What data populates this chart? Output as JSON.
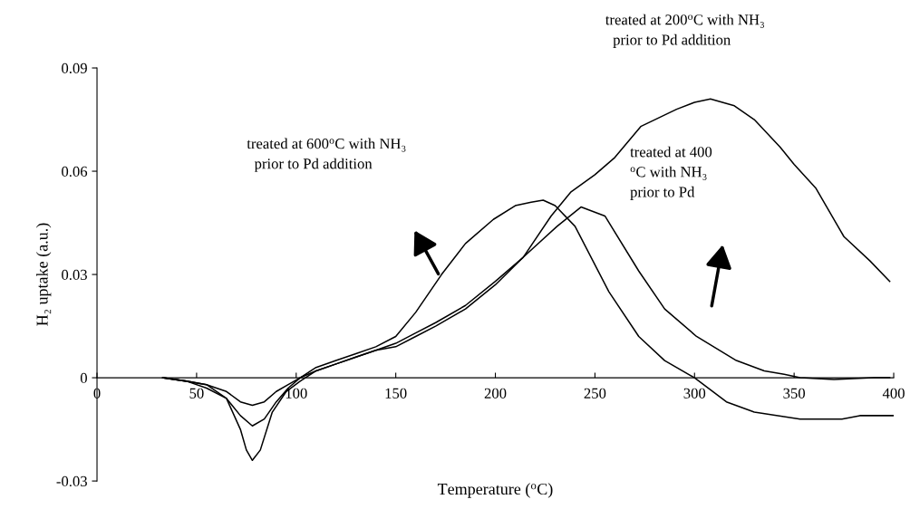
{
  "chart_data": {
    "type": "line",
    "xlabel": "Temperature ($^{o}$C)",
    "ylabel": "H₂ uptake (a.u.)",
    "xlim": [
      0,
      400
    ],
    "xticks": [
      0,
      50,
      100,
      150,
      200,
      250,
      300,
      350,
      400
    ],
    "ylim": [
      -0.03,
      0.09
    ],
    "yticks": [
      {
        "value": -0.03,
        "label": "-0.03"
      },
      0,
      0.03,
      0.06,
      0.09
    ],
    "grid": false,
    "marker": "none",
    "line_style": "solid",
    "annotations": [
      "treated at 200$^{o}$C with NH₃\n  prior to Pd addition",
      "treated at 600$^{o}$C with NH₃\n  prior to Pd addition",
      "treated at 400\n$^{o}$C with NH₃\nprior to Pd"
    ],
    "series": [
      {
        "color": "#000000",
        "x": [
          33,
          45,
          55,
          65,
          72,
          75,
          78,
          82,
          88,
          95,
          102,
          110,
          120,
          130,
          140,
          150,
          160,
          170,
          185,
          200,
          214,
          228,
          238,
          250,
          260,
          273,
          291,
          300,
          308,
          320,
          330,
          343,
          350,
          361,
          375,
          388,
          398
        ],
        "values": [
          0,
          -0.001,
          -0.002,
          -0.006,
          -0.015,
          -0.021,
          -0.024,
          -0.021,
          -0.01,
          -0.004,
          -0.001,
          0.002,
          0.004,
          0.006,
          0.008,
          0.009,
          0.012,
          0.015,
          0.02,
          0.027,
          0.035,
          0.047,
          0.054,
          0.059,
          0.064,
          0.073,
          0.078,
          0.08,
          0.081,
          0.079,
          0.075,
          0.067,
          0.062,
          0.055,
          0.041,
          0.034,
          0.028
        ]
      },
      {
        "color": "#000000",
        "x": [
          33,
          45,
          55,
          65,
          72,
          78,
          84,
          90,
          96,
          102,
          110,
          120,
          130,
          140,
          150,
          160,
          173,
          185,
          199,
          210,
          218,
          224,
          230,
          240,
          257,
          272,
          285,
          300,
          316,
          330,
          353,
          374,
          383,
          400
        ],
        "values": [
          0,
          -0.001,
          -0.003,
          -0.006,
          -0.011,
          -0.014,
          -0.012,
          -0.007,
          -0.003,
          0.0,
          0.003,
          0.005,
          0.007,
          0.009,
          0.012,
          0.019,
          0.03,
          0.039,
          0.046,
          0.05,
          0.051,
          0.0516,
          0.05,
          0.044,
          0.025,
          0.012,
          0.005,
          0,
          -0.007,
          -0.01,
          -0.012,
          -0.012,
          -0.011,
          -0.011
        ]
      },
      {
        "color": "#000000",
        "x": [
          33,
          45,
          55,
          65,
          72,
          78,
          84,
          90,
          96,
          102,
          110,
          120,
          130,
          140,
          150,
          160,
          170,
          185,
          200,
          214,
          231,
          243,
          255,
          272,
          285,
          301,
          321,
          335,
          345,
          353,
          370,
          390,
          398
        ],
        "values": [
          0,
          -0.001,
          -0.002,
          -0.004,
          -0.007,
          -0.008,
          -0.007,
          -0.004,
          -0.002,
          0.0,
          0.002,
          0.004,
          0.006,
          0.008,
          0.01,
          0.013,
          0.016,
          0.021,
          0.028,
          0.035,
          0.044,
          0.0496,
          0.047,
          0.031,
          0.02,
          0.012,
          0.005,
          0.002,
          0.001,
          0,
          -0.0005,
          0,
          0
        ]
      }
    ]
  }
}
